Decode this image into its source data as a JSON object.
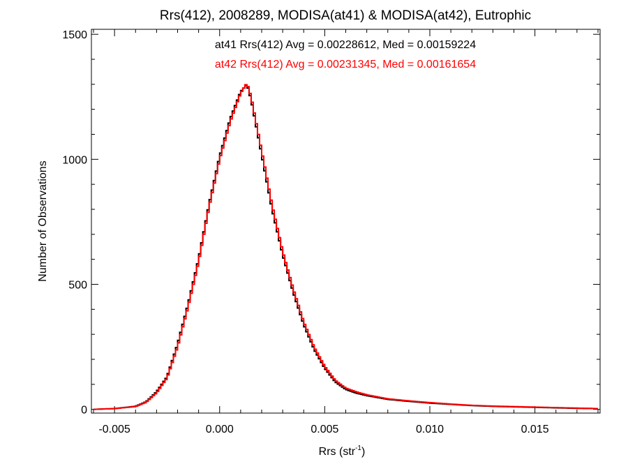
{
  "chart_data": {
    "type": "histogram",
    "title": "Rrs(412), 2008289, MODISA(at41) & MODISA(at42), Eutrophic",
    "xlabel_base": "Rrs (str",
    "xlabel_sup": "-1",
    "xlabel_close": ")",
    "ylabel": "Number of Observations",
    "xlim": [
      -0.0061,
      0.0181
    ],
    "ylim": [
      -15,
      1520
    ],
    "xticks": [
      -0.005,
      0.0,
      0.005,
      0.01,
      0.015
    ],
    "xtick_labels": [
      "-0.005",
      "0.000",
      "0.005",
      "0.010",
      "0.015"
    ],
    "xminor_step": 0.001,
    "yticks": [
      0,
      500,
      1000,
      1500
    ],
    "ytick_labels": [
      "0",
      "500",
      "1000",
      "1500"
    ],
    "yminor_step": 100,
    "annotations": [
      {
        "text": "at41 Rrs(412) Avg = 0.00228612, Med = 0.00159224",
        "color": "#000000"
      },
      {
        "text": "at42 Rrs(412) Avg = 0.00231345, Med = 0.00161654",
        "color": "#ff0000"
      }
    ],
    "series": [
      {
        "name": "at41",
        "color": "#000000",
        "bin_width": 0.0001,
        "x": [
          -0.006,
          -0.005,
          -0.004,
          -0.0035,
          -0.003,
          -0.0025,
          -0.002,
          -0.0015,
          -0.001,
          -0.0005,
          0.0,
          0.0005,
          0.001,
          0.0013,
          0.0015,
          0.002,
          0.0025,
          0.003,
          0.0035,
          0.004,
          0.0045,
          0.005,
          0.0055,
          0.006,
          0.0065,
          0.007,
          0.008,
          0.009,
          0.01,
          0.011,
          0.012,
          0.013,
          0.014,
          0.015,
          0.016,
          0.017,
          0.018
        ],
        "y": [
          0,
          3,
          12,
          30,
          70,
          130,
          260,
          420,
          600,
          820,
          1010,
          1160,
          1270,
          1300,
          1240,
          1020,
          800,
          620,
          470,
          340,
          240,
          165,
          110,
          80,
          65,
          55,
          40,
          32,
          25,
          20,
          15,
          12,
          10,
          8,
          6,
          4,
          3
        ]
      },
      {
        "name": "at42",
        "color": "#ff0000",
        "bin_width": 0.0001,
        "x": [
          -0.006,
          -0.005,
          -0.004,
          -0.0035,
          -0.003,
          -0.0025,
          -0.002,
          -0.0015,
          -0.001,
          -0.0005,
          0.0,
          0.0005,
          0.001,
          0.0013,
          0.0015,
          0.002,
          0.0025,
          0.003,
          0.0035,
          0.004,
          0.0045,
          0.005,
          0.0055,
          0.006,
          0.0065,
          0.007,
          0.008,
          0.009,
          0.01,
          0.011,
          0.012,
          0.013,
          0.014,
          0.015,
          0.016,
          0.017,
          0.018
        ],
        "y": [
          0,
          3,
          11,
          28,
          66,
          125,
          250,
          410,
          590,
          810,
          1000,
          1150,
          1265,
          1305,
          1250,
          1035,
          815,
          632,
          482,
          350,
          248,
          172,
          116,
          85,
          70,
          58,
          42,
          34,
          27,
          21,
          16,
          13,
          11,
          9,
          7,
          5,
          3
        ]
      }
    ]
  }
}
